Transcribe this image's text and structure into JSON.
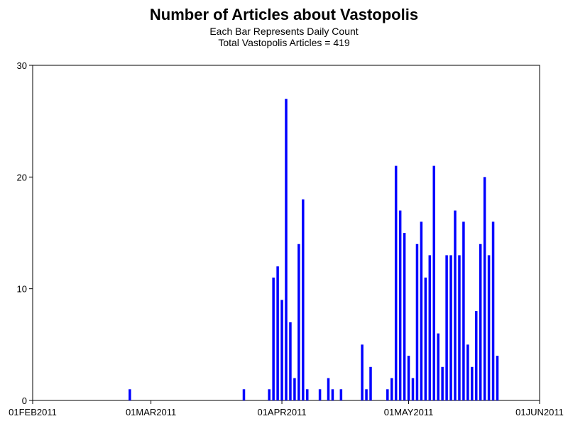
{
  "chart_data": {
    "type": "bar",
    "title": "Number of Articles about Vastopolis",
    "subtitle": "Each Bar Represents Daily Count",
    "subtitle2": "Total Vastopolis Articles = 419",
    "xlabel": "",
    "ylabel": "",
    "xlim": [
      "2011-02-01",
      "2011-06-01"
    ],
    "ylim": [
      0,
      30
    ],
    "x_ticks": [
      "01FEB2011",
      "01MAR2011",
      "01APR2011",
      "01MAY2011",
      "01JUN2011"
    ],
    "x_tick_dates": [
      "2011-02-01",
      "2011-03-01",
      "2011-04-01",
      "2011-05-01",
      "2011-06-01"
    ],
    "y_ticks": [
      0,
      10,
      20,
      30
    ],
    "bar_color": "#0000ff",
    "grid": false,
    "dates": [
      "2011-02-24",
      "2011-03-23",
      "2011-03-29",
      "2011-03-30",
      "2011-03-31",
      "2011-04-01",
      "2011-04-02",
      "2011-04-03",
      "2011-04-04",
      "2011-04-05",
      "2011-04-06",
      "2011-04-07",
      "2011-04-10",
      "2011-04-12",
      "2011-04-13",
      "2011-04-15",
      "2011-04-20",
      "2011-04-21",
      "2011-04-22",
      "2011-04-26",
      "2011-04-27",
      "2011-04-28",
      "2011-04-29",
      "2011-04-30",
      "2011-05-01",
      "2011-05-02",
      "2011-05-03",
      "2011-05-04",
      "2011-05-05",
      "2011-05-06",
      "2011-05-07",
      "2011-05-08",
      "2011-05-09",
      "2011-05-10",
      "2011-05-11",
      "2011-05-12",
      "2011-05-13",
      "2011-05-14",
      "2011-05-15",
      "2011-05-16",
      "2011-05-17",
      "2011-05-18",
      "2011-05-19",
      "2011-05-20",
      "2011-05-21",
      "2011-05-22"
    ],
    "values": [
      1,
      1,
      1,
      11,
      12,
      9,
      27,
      7,
      2,
      14,
      18,
      1,
      1,
      2,
      1,
      1,
      5,
      1,
      3,
      1,
      2,
      21,
      17,
      15,
      4,
      2,
      14,
      16,
      11,
      13,
      21,
      6,
      3,
      13,
      13,
      17,
      13,
      16,
      5,
      3,
      8,
      14,
      20,
      13,
      16,
      4
    ]
  }
}
